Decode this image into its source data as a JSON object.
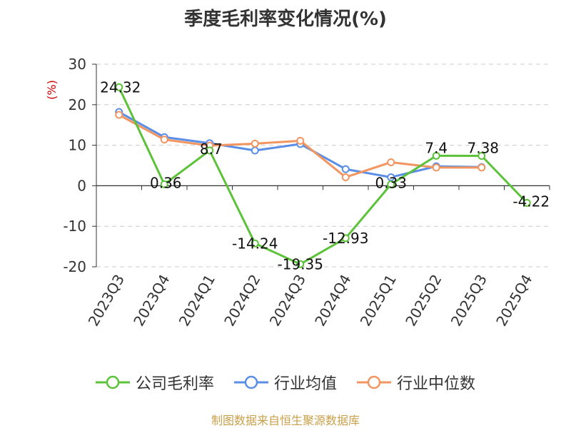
{
  "chart_data": {
    "type": "line",
    "title": "季度毛利率变化情况(%)",
    "ylabel": "(%)",
    "categories": [
      "2023Q3",
      "2023Q4",
      "2024Q1",
      "2024Q2",
      "2024Q3",
      "2024Q4",
      "2025Q1",
      "2025Q2",
      "2025Q3",
      "2025Q4"
    ],
    "ylim": [
      -20,
      30
    ],
    "yticks": [
      30,
      20,
      10,
      0,
      -10,
      -20
    ],
    "grid": true,
    "legend_position": "bottom",
    "series": [
      {
        "name": "公司毛利率",
        "color": "#5cc23a",
        "values": [
          24.32,
          0.36,
          8.7,
          -14.24,
          -19.35,
          -12.93,
          0.33,
          7.4,
          7.38,
          -4.22
        ],
        "labels": [
          "24.32",
          "0.36",
          "8.7",
          "-14.24",
          "-19.35",
          "-12.93",
          "0.33",
          "7.4",
          "7.38",
          "-4.22"
        ]
      },
      {
        "name": "行业均值",
        "color": "#5b8ee6",
        "values": [
          18.2,
          12.0,
          10.5,
          8.7,
          10.3,
          4.1,
          2.1,
          4.8,
          4.6,
          null
        ]
      },
      {
        "name": "行业中位数",
        "color": "#f29560",
        "values": [
          17.5,
          11.4,
          9.9,
          10.4,
          11.1,
          2.1,
          5.8,
          4.5,
          4.5,
          null
        ]
      }
    ]
  },
  "source": "制图数据来自恒生聚源数据库"
}
